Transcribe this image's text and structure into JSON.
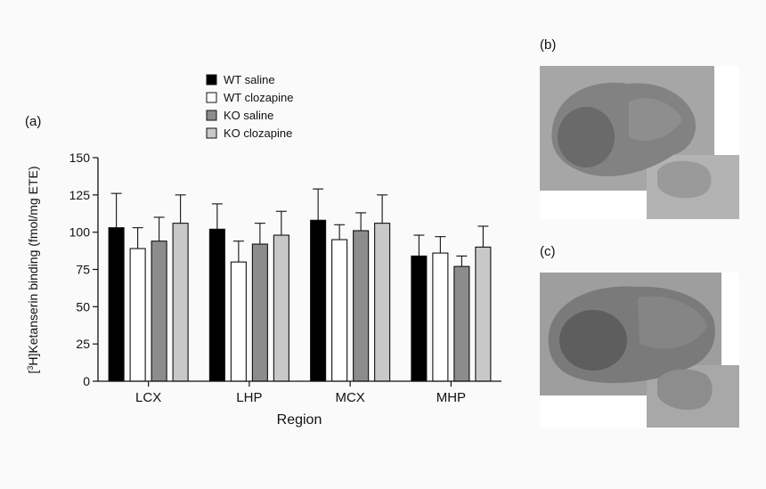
{
  "panels": {
    "a": "(a)",
    "b": "(b)",
    "c": "(c)"
  },
  "colors": {
    "wt_saline": "#000000",
    "wt_clozapine": "#ffffff",
    "ko_saline": "#8c8c8c",
    "ko_clozapine": "#c8c8c8",
    "slice_bg": "#a9a9a9",
    "slice_tissue": "#7d7d7d",
    "slice_dark": "#5c5c5c"
  },
  "chart_data": {
    "type": "bar",
    "title": "",
    "xlabel": "Region",
    "ylabel_prefix": "[",
    "ylabel_sup": "3",
    "ylabel_suffix": "H]Ketanserin binding (fmol/mg ETE)",
    "ylim": [
      0,
      150
    ],
    "yticks": [
      0,
      25,
      50,
      75,
      100,
      125,
      150
    ],
    "grid": false,
    "legend_position": "top-center",
    "error_bars": true,
    "categories": [
      "LCX",
      "LHP",
      "MCX",
      "MHP"
    ],
    "series": [
      {
        "name": "WT saline",
        "color": "#000000",
        "values": [
          103,
          102,
          108,
          84
        ],
        "errors": [
          23,
          17,
          21,
          14
        ]
      },
      {
        "name": "WT clozapine",
        "color": "#ffffff",
        "values": [
          89,
          80,
          95,
          86
        ],
        "errors": [
          14,
          14,
          10,
          11
        ]
      },
      {
        "name": "KO saline",
        "color": "#8c8c8c",
        "values": [
          94,
          92,
          101,
          77
        ],
        "errors": [
          16,
          14,
          12,
          7
        ]
      },
      {
        "name": "KO clozapine",
        "color": "#c8c8c8",
        "values": [
          106,
          98,
          106,
          90
        ],
        "errors": [
          19,
          16,
          19,
          14
        ]
      }
    ]
  }
}
